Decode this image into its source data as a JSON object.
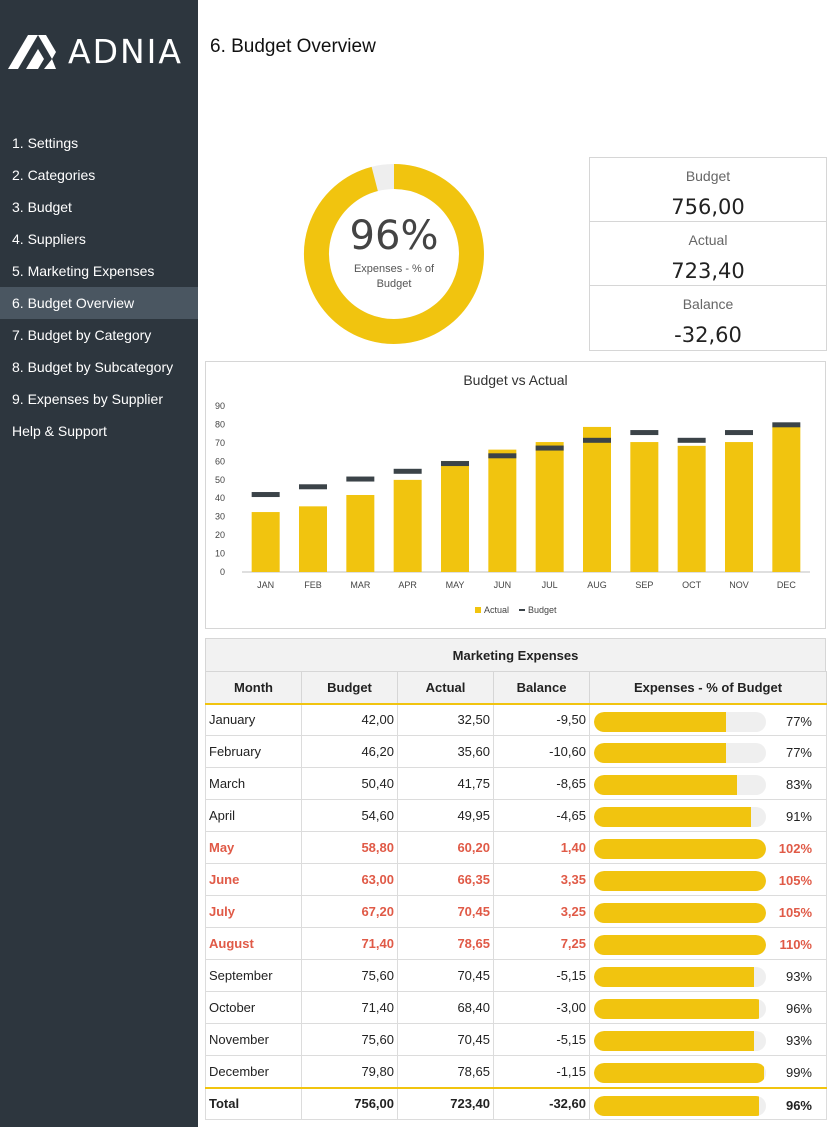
{
  "logo": {
    "text": "ADNIA"
  },
  "sidebar": {
    "items": [
      {
        "label": "1. Settings",
        "active": false
      },
      {
        "label": "2. Categories",
        "active": false
      },
      {
        "label": "3. Budget",
        "active": false
      },
      {
        "label": "4. Suppliers",
        "active": false
      },
      {
        "label": "5. Marketing Expenses",
        "active": false
      },
      {
        "label": "6. Budget Overview",
        "active": true
      },
      {
        "label": "7. Budget by Category",
        "active": false
      },
      {
        "label": "8. Budget by Subcategory",
        "active": false
      },
      {
        "label": "9. Expenses by Supplier",
        "active": false
      },
      {
        "label": "Help & Support",
        "active": false
      }
    ]
  },
  "page": {
    "title": "6. Budget Overview"
  },
  "donut": {
    "value_text": "96%",
    "fraction": 0.96,
    "label": "Expenses - % of Budget"
  },
  "kpi": {
    "budget_label": "Budget",
    "budget_value": "756,00",
    "actual_label": "Actual",
    "actual_value": "723,40",
    "balance_label": "Balance",
    "balance_value": "-32,60"
  },
  "colors": {
    "accent": "#f1c40f",
    "budget_marker": "#3b4348",
    "over_budget": "#e05a47",
    "sidebar": "#2d363e",
    "sidebar_active": "#4a5661"
  },
  "chart_data": {
    "type": "bar",
    "title": "Budget vs Actual",
    "categories": [
      "JAN",
      "FEB",
      "MAR",
      "APR",
      "MAY",
      "JUN",
      "JUL",
      "AUG",
      "SEP",
      "OCT",
      "NOV",
      "DEC"
    ],
    "series": [
      {
        "name": "Actual",
        "values": [
          32.5,
          35.6,
          41.75,
          49.95,
          60.2,
          66.35,
          70.45,
          78.65,
          70.45,
          68.4,
          70.45,
          78.65
        ]
      },
      {
        "name": "Budget",
        "values": [
          42.0,
          46.2,
          50.4,
          54.6,
          58.8,
          63.0,
          67.2,
          71.4,
          75.6,
          71.4,
          75.6,
          79.8
        ]
      }
    ],
    "ylim": [
      0,
      90
    ],
    "yticks": [
      0,
      10,
      20,
      30,
      40,
      50,
      60,
      70,
      80,
      90
    ],
    "legend": "bottom-center"
  },
  "table": {
    "title": "Marketing Expenses",
    "headers": [
      "Month",
      "Budget",
      "Actual",
      "Balance",
      "Expenses - % of Budget"
    ],
    "rows": [
      {
        "month": "January",
        "budget": "42,00",
        "actual": "32,50",
        "balance": "-9,50",
        "pct": "77%",
        "pct_value": 0.77,
        "over": false
      },
      {
        "month": "February",
        "budget": "46,20",
        "actual": "35,60",
        "balance": "-10,60",
        "pct": "77%",
        "pct_value": 0.77,
        "over": false
      },
      {
        "month": "March",
        "budget": "50,40",
        "actual": "41,75",
        "balance": "-8,65",
        "pct": "83%",
        "pct_value": 0.83,
        "over": false
      },
      {
        "month": "April",
        "budget": "54,60",
        "actual": "49,95",
        "balance": "-4,65",
        "pct": "91%",
        "pct_value": 0.91,
        "over": false
      },
      {
        "month": "May",
        "budget": "58,80",
        "actual": "60,20",
        "balance": "1,40",
        "pct": "102%",
        "pct_value": 1.02,
        "over": true
      },
      {
        "month": "June",
        "budget": "63,00",
        "actual": "66,35",
        "balance": "3,35",
        "pct": "105%",
        "pct_value": 1.05,
        "over": true
      },
      {
        "month": "July",
        "budget": "67,20",
        "actual": "70,45",
        "balance": "3,25",
        "pct": "105%",
        "pct_value": 1.05,
        "over": true
      },
      {
        "month": "August",
        "budget": "71,40",
        "actual": "78,65",
        "balance": "7,25",
        "pct": "110%",
        "pct_value": 1.1,
        "over": true
      },
      {
        "month": "September",
        "budget": "75,60",
        "actual": "70,45",
        "balance": "-5,15",
        "pct": "93%",
        "pct_value": 0.93,
        "over": false
      },
      {
        "month": "October",
        "budget": "71,40",
        "actual": "68,40",
        "balance": "-3,00",
        "pct": "96%",
        "pct_value": 0.96,
        "over": false
      },
      {
        "month": "November",
        "budget": "75,60",
        "actual": "70,45",
        "balance": "-5,15",
        "pct": "93%",
        "pct_value": 0.93,
        "over": false
      },
      {
        "month": "December",
        "budget": "79,80",
        "actual": "78,65",
        "balance": "-1,15",
        "pct": "99%",
        "pct_value": 0.99,
        "over": false
      }
    ],
    "total": {
      "month": "Total",
      "budget": "756,00",
      "actual": "723,40",
      "balance": "-32,60",
      "pct": "96%",
      "pct_value": 0.96
    }
  }
}
